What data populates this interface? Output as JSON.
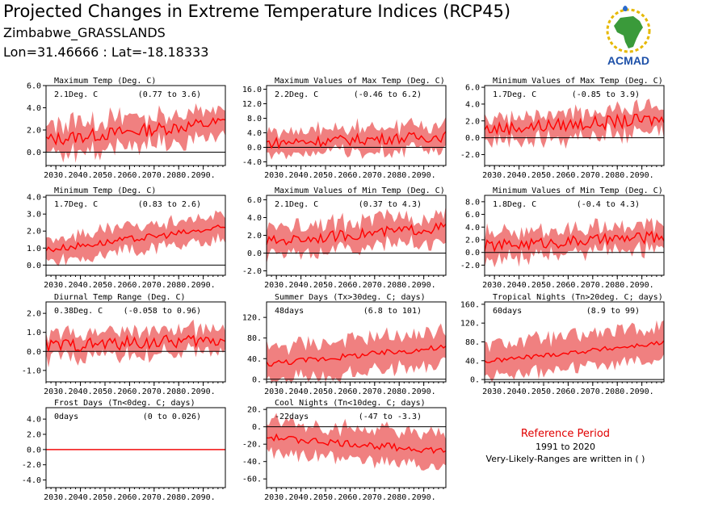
{
  "header": {
    "title": "Projected Changes in Extreme Temperature Indices (RCP45)",
    "subtitle": "Zimbabwe_GRASSLANDS",
    "coords": "Lon=31.46666 : Lat=-18.18333",
    "logo_text": "ACMAD"
  },
  "reference": {
    "title": "Reference Period",
    "period": "1991 to 2020",
    "note": "Very-Likely-Ranges are written in ( )"
  },
  "colors": {
    "band": "#f08080",
    "line": "#ff0000",
    "zero": "#000000",
    "ref_title": "#e00000"
  },
  "chart_data": [
    {
      "type": "area",
      "title": "Maximum Temp (Deg. C)",
      "value": "2.1Deg. C",
      "range": "(0.77 to 3.6)",
      "x": [
        2025,
        2099
      ],
      "ylim": [
        -1.2,
        6.0
      ],
      "yticks": [
        0,
        2,
        4,
        6
      ],
      "ytick_labels": [
        "0.0",
        "2.0",
        "4.0",
        "6.0"
      ],
      "xtick_labels": [
        "2030.",
        "2040.",
        "2050.",
        "2060.",
        "2070.",
        "2080.",
        "2090."
      ],
      "mean_start": 1.1,
      "mean_end": 2.7,
      "band_half": 1.3,
      "noise": 0.6
    },
    {
      "type": "area",
      "title": "Maximum Values of Max Temp (Deg. C)",
      "value": "2.2Deg. C",
      "range": "(-0.46 to 6.2)",
      "x": [
        2025,
        2099
      ],
      "ylim": [
        -5.0,
        17.0
      ],
      "yticks": [
        -4,
        0,
        4,
        8,
        12,
        16
      ],
      "ytick_labels": [
        "-4.0",
        "0.0",
        "4.0",
        "8.0",
        "12.0",
        "16.0"
      ],
      "xtick_labels": [
        "2030.",
        "2040.",
        "2050.",
        "2060.",
        "2070.",
        "2080.",
        "2090."
      ],
      "mean_start": 1.2,
      "mean_end": 3.0,
      "band_half": 3.2,
      "noise": 1.5
    },
    {
      "type": "area",
      "title": "Minimum Values of Max Temp (Deg. C)",
      "value": "1.7Deg. C",
      "range": "(-0.85 to 3.9)",
      "x": [
        2025,
        2099
      ],
      "ylim": [
        -3.3,
        6.2
      ],
      "yticks": [
        -2,
        0,
        2,
        4,
        6
      ],
      "ytick_labels": [
        "-2.0",
        "0.0",
        "2.0",
        "4.0",
        "6.0"
      ],
      "xtick_labels": [
        "2030.",
        "2040.",
        "2050.",
        "2060.",
        "2070.",
        "2080.",
        "2090."
      ],
      "mean_start": 1.0,
      "mean_end": 2.2,
      "band_half": 1.5,
      "noise": 0.8
    },
    {
      "type": "area",
      "title": "Minimum Temp (Deg. C)",
      "value": "1.7Deg. C",
      "range": "(0.83 to 2.6)",
      "x": [
        2025,
        2099
      ],
      "ylim": [
        -0.6,
        4.1
      ],
      "yticks": [
        0,
        1,
        2,
        3,
        4
      ],
      "ytick_labels": [
        "0.0",
        "1.0",
        "2.0",
        "3.0",
        "4.0"
      ],
      "xtick_labels": [
        "2030.",
        "2040.",
        "2050.",
        "2060.",
        "2070.",
        "2080.",
        "2090."
      ],
      "mean_start": 0.9,
      "mean_end": 2.2,
      "band_half": 0.7,
      "noise": 0.2
    },
    {
      "type": "area",
      "title": "Maximum Values of Min Temp (Deg. C)",
      "value": "2.1Deg. C",
      "range": "(0.37 to 4.3)",
      "x": [
        2025,
        2099
      ],
      "ylim": [
        -2.5,
        6.5
      ],
      "yticks": [
        -2,
        0,
        2,
        4,
        6
      ],
      "ytick_labels": [
        "-2.0",
        "0.0",
        "2.0",
        "4.0",
        "6.0"
      ],
      "xtick_labels": [
        "2030.",
        "2040.",
        "2050.",
        "2060.",
        "2070.",
        "2080.",
        "2090."
      ],
      "mean_start": 1.3,
      "mean_end": 2.9,
      "band_half": 1.5,
      "noise": 0.6
    },
    {
      "type": "area",
      "title": "Minimum Values of Min Temp (Deg. C)",
      "value": "1.8Deg. C",
      "range": "(-0.4 to 4.3)",
      "x": [
        2025,
        2099
      ],
      "ylim": [
        -3.6,
        9.0
      ],
      "yticks": [
        -2,
        0,
        2,
        4,
        6,
        8
      ],
      "ytick_labels": [
        "-2.0",
        "0.0",
        "2.0",
        "4.0",
        "6.0",
        "8.0"
      ],
      "xtick_labels": [
        "2030.",
        "2040.",
        "2050.",
        "2060.",
        "2070.",
        "2080.",
        "2090."
      ],
      "mean_start": 1.0,
      "mean_end": 2.5,
      "band_half": 2.0,
      "noise": 0.9
    },
    {
      "type": "area",
      "title": "Diurnal Temp Range (Deg. C)",
      "value": "0.38Deg. C",
      "range": "(-0.058 to 0.96)",
      "x": [
        2025,
        2099
      ],
      "ylim": [
        -1.6,
        2.6
      ],
      "yticks": [
        -1,
        0,
        1,
        2
      ],
      "ytick_labels": [
        "-1.0",
        "0.0",
        "1.0",
        "2.0"
      ],
      "xtick_labels": [
        "2030.",
        "2040.",
        "2050.",
        "2060.",
        "2070.",
        "2080.",
        "2090."
      ],
      "mean_start": 0.3,
      "mean_end": 0.6,
      "band_half": 0.6,
      "noise": 0.35
    },
    {
      "type": "area",
      "title": "Summer Days (Tx>30deg. C; days)",
      "value": "48days",
      "range": "(6.8 to 101)",
      "x": [
        2025,
        2099
      ],
      "ylim": [
        -5,
        150
      ],
      "yticks": [
        0,
        40,
        80,
        120
      ],
      "ytick_labels": [
        "0.",
        "40.",
        "80.",
        "120."
      ],
      "xtick_labels": [
        "2030.",
        "2040.",
        "2050.",
        "2060.",
        "2070.",
        "2080.",
        "2090."
      ],
      "mean_start": 30,
      "mean_end": 62,
      "band_half": 32,
      "noise": 6
    },
    {
      "type": "area",
      "title": "Tropical Nights (Tn>20deg. C; days)",
      "value": "60days",
      "range": "(8.9 to 99)",
      "x": [
        2025,
        2099
      ],
      "ylim": [
        -5,
        165
      ],
      "yticks": [
        0,
        40,
        80,
        120,
        160
      ],
      "ytick_labels": [
        "0.",
        "40.",
        "80.",
        "120.",
        "160."
      ],
      "xtick_labels": [
        "2030.",
        "2040.",
        "2050.",
        "2060.",
        "2070.",
        "2080.",
        "2090."
      ],
      "mean_start": 38,
      "mean_end": 78,
      "band_half": 35,
      "noise": 5
    },
    {
      "type": "area",
      "title": "Frost Days (Tn<0deg. C; days)",
      "value": "0days",
      "range": "(0 to 0.026)",
      "x": [
        2025,
        2099
      ],
      "ylim": [
        -5.0,
        5.5
      ],
      "yticks": [
        -4,
        -2,
        0,
        2,
        4
      ],
      "ytick_labels": [
        "-4.0",
        "-2.0",
        "0.0",
        "2.0",
        "4.0"
      ],
      "xtick_labels": [
        "2030.",
        "2040.",
        "2050.",
        "2060.",
        "2070.",
        "2080.",
        "2090."
      ],
      "mean_start": 0,
      "mean_end": 0,
      "band_half": 0,
      "noise": 0
    },
    {
      "type": "area",
      "title": "Cool Nights (Tn<10deg. C; days)",
      "value": "-22days",
      "range": "(-47 to -3.3)",
      "x": [
        2025,
        2099
      ],
      "ylim": [
        -70,
        22
      ],
      "yticks": [
        -60,
        -40,
        -20,
        0,
        20
      ],
      "ytick_labels": [
        "-60.",
        "-40.",
        "-20.",
        "0.",
        "20."
      ],
      "xtick_labels": [
        "2030.",
        "2040.",
        "2050.",
        "2060.",
        "2070.",
        "2080.",
        "2090."
      ],
      "mean_start": -12,
      "mean_end": -28,
      "band_half": 18,
      "noise": 4
    }
  ]
}
